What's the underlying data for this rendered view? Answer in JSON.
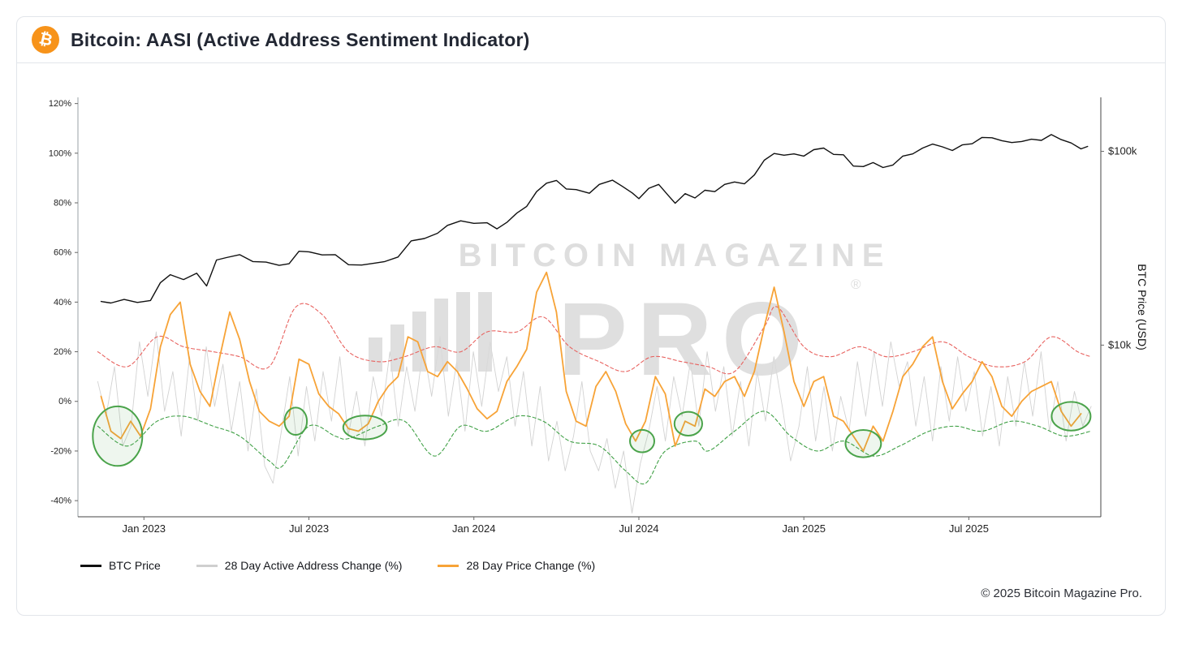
{
  "header": {
    "title": "Bitcoin: AASI (Active Address Sentiment Indicator)",
    "icon_glyph": "₿"
  },
  "footer": {
    "copyright": "© 2025 Bitcoin Magazine Pro."
  },
  "watermark": {
    "line1": "BITCOIN MAGAZINE",
    "line2": "PRO",
    "reg": "®"
  },
  "legend": [
    {
      "label": "BTC Price",
      "color": "#111111"
    },
    {
      "label": "28 Day Active Address Change (%)",
      "color": "#cfcfcf"
    },
    {
      "label": "28 Day Price Change (%)",
      "color": "#f7a337"
    }
  ],
  "chart_data": {
    "type": "line",
    "title": "Bitcoin: AASI (Active Address Sentiment Indicator)",
    "grid": false,
    "legend_position": "bottom-left",
    "signal_color": "#4aa34a",
    "x_domain": [
      2022.8,
      2025.9
    ],
    "x_ticks": [
      {
        "x": 2023.0,
        "label": "Jan 2023"
      },
      {
        "x": 2023.5,
        "label": "Jul 2023"
      },
      {
        "x": 2024.0,
        "label": "Jan 2024"
      },
      {
        "x": 2024.5,
        "label": "Jul 2024"
      },
      {
        "x": 2025.0,
        "label": "Jan 2025"
      },
      {
        "x": 2025.5,
        "label": "Jul 2025"
      }
    ],
    "left_axis": {
      "min": -46.5,
      "max": 122.5,
      "unit": "%",
      "ticks": [
        {
          "v": 120,
          "label": "120%"
        },
        {
          "v": 100,
          "label": "100%"
        },
        {
          "v": 80,
          "label": "80%"
        },
        {
          "v": 60,
          "label": "60%"
        },
        {
          "v": 40,
          "label": "40%"
        },
        {
          "v": 20,
          "label": "20%"
        },
        {
          "v": 0,
          "label": "0%"
        },
        {
          "v": -20,
          "label": "-20%"
        },
        {
          "v": -40,
          "label": "-40%"
        }
      ]
    },
    "right_axis": {
      "label": "BTC Price (USD)",
      "scale": "log",
      "min": 1300,
      "max": 190000,
      "ticks": [
        {
          "v": 100000,
          "label": "$100k"
        },
        {
          "v": 10000,
          "label": "$10k"
        }
      ]
    },
    "series": [
      {
        "id": "active-address-change",
        "name": "28 Day Active Address Change (%)",
        "axis": "left",
        "color": "#d2d2d2",
        "width": 0.9,
        "dash": "",
        "smooth": false,
        "x0": 2022.86,
        "dx": 0.0253,
        "y": [
          8,
          -6,
          14,
          -18,
          -10,
          24,
          2,
          28,
          -4,
          12,
          -14,
          18,
          -8,
          22,
          -2,
          15,
          -12,
          8,
          -20,
          5,
          -26,
          -33,
          -12,
          10,
          -22,
          6,
          -16,
          12,
          -8,
          18,
          -14,
          4,
          -18,
          10,
          -6,
          20,
          -10,
          14,
          -4,
          22,
          2,
          26,
          -6,
          16,
          -12,
          20,
          -2,
          24,
          4,
          18,
          -10,
          12,
          -18,
          6,
          -24,
          -8,
          -28,
          -14,
          8,
          -20,
          -28,
          -15,
          -35,
          -20,
          -45,
          -25,
          -12,
          6,
          -16,
          10,
          -6,
          16,
          -10,
          20,
          -4,
          14,
          -14,
          8,
          -18,
          12,
          -8,
          18,
          -2,
          -24,
          -10,
          14,
          -16,
          6,
          -20,
          2,
          -12,
          16,
          -6,
          20,
          -2,
          24,
          6,
          16,
          -10,
          10,
          -16,
          14,
          -8,
          18,
          -4,
          12,
          -14,
          6,
          -18,
          10,
          -10,
          16,
          -6,
          20,
          -12,
          8,
          -16,
          4,
          -10,
          -2
        ]
      },
      {
        "id": "upper-band",
        "name": "Upper Band",
        "axis": "left",
        "color": "#e8625f",
        "width": 1.1,
        "dash": "4 3",
        "smooth": true,
        "x": [
          2022.86,
          2022.95,
          2023.04,
          2023.12,
          2023.21,
          2023.29,
          2023.38,
          2023.46,
          2023.54,
          2023.62,
          2023.71,
          2023.79,
          2023.88,
          2023.96,
          2024.04,
          2024.13,
          2024.21,
          2024.29,
          2024.38,
          2024.46,
          2024.54,
          2024.63,
          2024.71,
          2024.79,
          2024.88,
          2024.92,
          2025.0,
          2025.08,
          2025.17,
          2025.25,
          2025.33,
          2025.42,
          2025.5,
          2025.58,
          2025.67,
          2025.75,
          2025.83,
          2025.87
        ],
        "y": [
          20,
          14,
          26,
          22,
          20,
          18,
          14,
          38,
          35,
          20,
          16,
          18,
          22,
          20,
          28,
          28,
          34,
          22,
          16,
          12,
          18,
          16,
          14,
          12,
          30,
          38,
          22,
          18,
          22,
          18,
          20,
          24,
          18,
          14,
          16,
          26,
          20,
          18
        ]
      },
      {
        "id": "lower-band",
        "name": "Lower Band",
        "axis": "left",
        "color": "#3fa045",
        "width": 1.1,
        "dash": "4 3",
        "smooth": true,
        "x": [
          2022.86,
          2022.95,
          2023.04,
          2023.12,
          2023.21,
          2023.29,
          2023.38,
          2023.42,
          2023.5,
          2023.58,
          2023.62,
          2023.71,
          2023.79,
          2023.88,
          2023.96,
          2024.04,
          2024.13,
          2024.21,
          2024.29,
          2024.38,
          2024.46,
          2024.52,
          2024.58,
          2024.67,
          2024.71,
          2024.79,
          2024.88,
          2024.96,
          2025.04,
          2025.12,
          2025.21,
          2025.29,
          2025.38,
          2025.46,
          2025.54,
          2025.63,
          2025.71,
          2025.79,
          2025.87
        ],
        "y": [
          -10,
          -18,
          -8,
          -6,
          -10,
          -14,
          -24,
          -26,
          -10,
          -14,
          -15,
          -10,
          -8,
          -22,
          -10,
          -12,
          -6,
          -8,
          -16,
          -18,
          -28,
          -33,
          -20,
          -16,
          -20,
          -12,
          -4,
          -14,
          -20,
          -16,
          -22,
          -18,
          -12,
          -10,
          -12,
          -8,
          -10,
          -14,
          -12
        ]
      },
      {
        "id": "price-change",
        "name": "28 Day Price Change (%)",
        "axis": "left",
        "color": "#f7a337",
        "width": 1.8,
        "dash": "",
        "smooth": false,
        "x0": 2022.87,
        "dx": 0.03,
        "y": [
          2,
          -12,
          -15,
          -8,
          -14,
          -3,
          22,
          35,
          40,
          15,
          4,
          -2,
          18,
          36,
          25,
          8,
          -4,
          -8,
          -10,
          -6,
          17,
          15,
          3,
          -2,
          -5,
          -11,
          -12,
          -9,
          0,
          6,
          10,
          26,
          24,
          12,
          10,
          16,
          12,
          5,
          -3,
          -7,
          -4,
          8,
          14,
          21,
          44,
          52,
          36,
          4,
          -8,
          -10,
          6,
          12,
          4,
          -9,
          -16,
          -8,
          10,
          3,
          -18,
          -8,
          -10,
          5,
          2,
          8,
          10,
          2,
          12,
          30,
          46,
          28,
          8,
          -2,
          8,
          10,
          -6,
          -8,
          -14,
          -20,
          -10,
          -16,
          -4,
          10,
          15,
          22,
          26,
          8,
          -3,
          3,
          8,
          16,
          10,
          -2,
          -6,
          0,
          4,
          6,
          8,
          -4,
          -10,
          -5
        ]
      },
      {
        "id": "btc-price",
        "name": "BTC Price",
        "axis": "right",
        "color": "#111111",
        "width": 1.4,
        "dash": "",
        "smooth": false,
        "x": [
          2022.87,
          2022.9,
          2022.94,
          2022.98,
          2023.02,
          2023.05,
          2023.08,
          2023.12,
          2023.16,
          2023.19,
          2023.22,
          2023.25,
          2023.29,
          2023.33,
          2023.37,
          2023.41,
          2023.44,
          2023.47,
          2023.5,
          2023.54,
          2023.58,
          2023.62,
          2023.66,
          2023.7,
          2023.73,
          2023.77,
          2023.81,
          2023.85,
          2023.89,
          2023.92,
          2023.96,
          2024.0,
          2024.04,
          2024.07,
          2024.1,
          2024.13,
          2024.16,
          2024.19,
          2024.22,
          2024.25,
          2024.28,
          2024.31,
          2024.35,
          2024.38,
          2024.42,
          2024.45,
          2024.48,
          2024.5,
          2024.53,
          2024.56,
          2024.59,
          2024.61,
          2024.64,
          2024.67,
          2024.7,
          2024.73,
          2024.76,
          2024.79,
          2024.82,
          2024.85,
          2024.88,
          2024.91,
          2024.94,
          2024.97,
          2025.0,
          2025.03,
          2025.06,
          2025.09,
          2025.12,
          2025.15,
          2025.18,
          2025.21,
          2025.24,
          2025.27,
          2025.3,
          2025.33,
          2025.36,
          2025.39,
          2025.42,
          2025.45,
          2025.48,
          2025.51,
          2025.54,
          2025.57,
          2025.6,
          2025.63,
          2025.66,
          2025.69,
          2025.72,
          2025.75,
          2025.78,
          2025.81,
          2025.84,
          2025.86
        ],
        "y": [
          16800,
          16500,
          17200,
          16600,
          17000,
          21000,
          23100,
          21800,
          23500,
          20200,
          27500,
          28300,
          29300,
          27000,
          26800,
          25800,
          26300,
          30500,
          30300,
          29200,
          29300,
          26000,
          25900,
          26500,
          27000,
          28500,
          34500,
          35500,
          37800,
          41500,
          43800,
          42500,
          42800,
          39800,
          43000,
          48000,
          52000,
          62000,
          68500,
          70800,
          64000,
          63500,
          60800,
          67500,
          71000,
          66000,
          61000,
          57000,
          64500,
          67500,
          59000,
          54000,
          60500,
          57500,
          63000,
          62000,
          67500,
          69500,
          68000,
          75500,
          90000,
          97500,
          95500,
          97000,
          94500,
          102000,
          104000,
          96500,
          96000,
          84000,
          83500,
          87500,
          82500,
          85000,
          94500,
          97000,
          104000,
          109000,
          105500,
          101000,
          108000,
          109500,
          118000,
          117500,
          113500,
          111000,
          112500,
          115500,
          114000,
          122000,
          115000,
          110500,
          103000,
          106000
        ]
      }
    ],
    "signals": [
      {
        "x": 2022.92,
        "y": -14,
        "rx": 0.075,
        "ry": 12
      },
      {
        "x": 2023.46,
        "y": -8,
        "rx": 0.034,
        "ry": 5.5
      },
      {
        "x": 2023.67,
        "y": -10.5,
        "rx": 0.066,
        "ry": 4.8
      },
      {
        "x": 2024.51,
        "y": -16,
        "rx": 0.037,
        "ry": 4.5
      },
      {
        "x": 2024.65,
        "y": -9,
        "rx": 0.042,
        "ry": 4.8
      },
      {
        "x": 2025.18,
        "y": -17,
        "rx": 0.054,
        "ry": 5.5
      },
      {
        "x": 2025.81,
        "y": -6,
        "rx": 0.059,
        "ry": 5.8
      }
    ]
  }
}
